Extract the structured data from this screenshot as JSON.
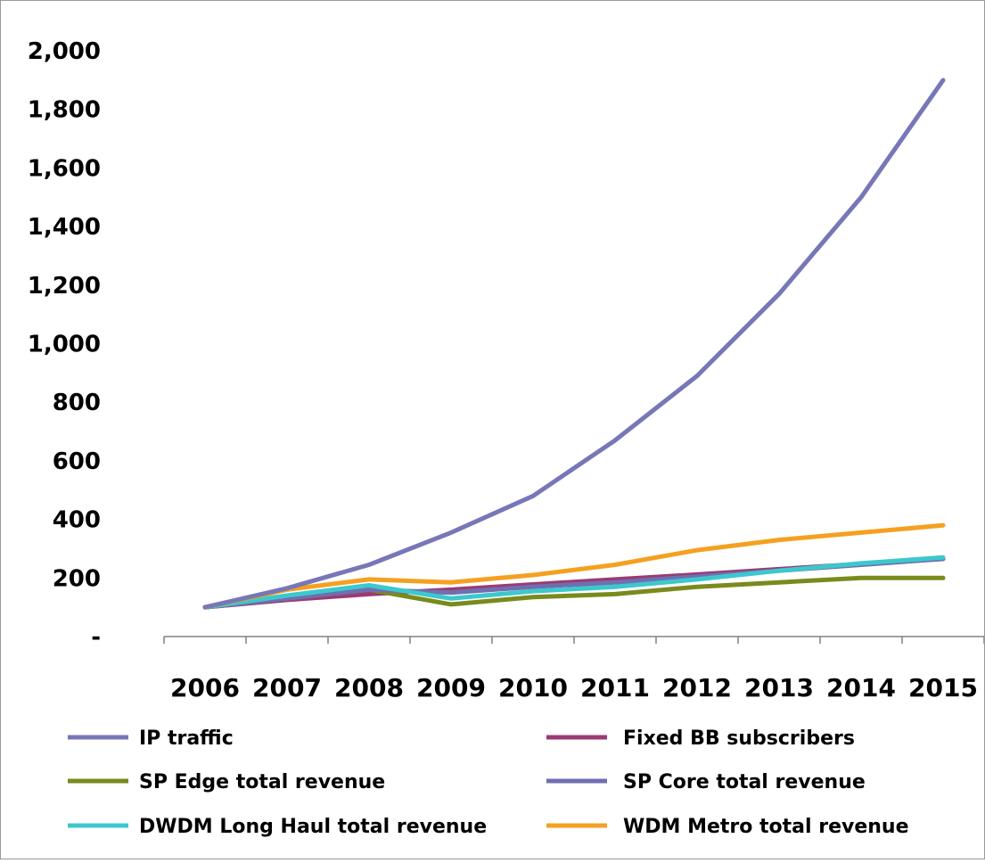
{
  "chart_data": {
    "type": "line",
    "categories": [
      "2006",
      "2007",
      "2008",
      "2009",
      "2010",
      "2011",
      "2012",
      "2013",
      "2014",
      "2015"
    ],
    "y_tick_labels": [
      "-",
      "200",
      "400",
      "600",
      "800",
      "1,000",
      "1,200",
      "1,400",
      "1,600",
      "1,800",
      "2,000"
    ],
    "ylim": [
      0,
      2000
    ],
    "grid": false,
    "legend_position": "bottom",
    "series": [
      {
        "name": "IP traffic",
        "color": "#7777b8",
        "values": [
          100,
          165,
          245,
          355,
          480,
          670,
          890,
          1170,
          1500,
          1900
        ]
      },
      {
        "name": "Fixed BB subscribers",
        "color": "#9b3a73",
        "values": [
          100,
          125,
          145,
          160,
          178,
          195,
          212,
          230,
          248,
          265
        ]
      },
      {
        "name": "SP Edge total revenue",
        "color": "#7a8a1c",
        "values": [
          100,
          130,
          160,
          110,
          135,
          145,
          170,
          185,
          200,
          200
        ]
      },
      {
        "name": "SP Core total revenue",
        "color": "#6f6fb0",
        "values": [
          100,
          130,
          160,
          150,
          170,
          185,
          205,
          225,
          245,
          265
        ]
      },
      {
        "name": "DWDM Long Haul total revenue",
        "color": "#3cc8cc",
        "values": [
          100,
          140,
          175,
          130,
          155,
          170,
          195,
          225,
          250,
          270
        ]
      },
      {
        "name": "WDM Metro total revenue",
        "color": "#f5a020",
        "values": [
          100,
          160,
          195,
          185,
          210,
          245,
          295,
          330,
          355,
          380
        ]
      }
    ]
  }
}
